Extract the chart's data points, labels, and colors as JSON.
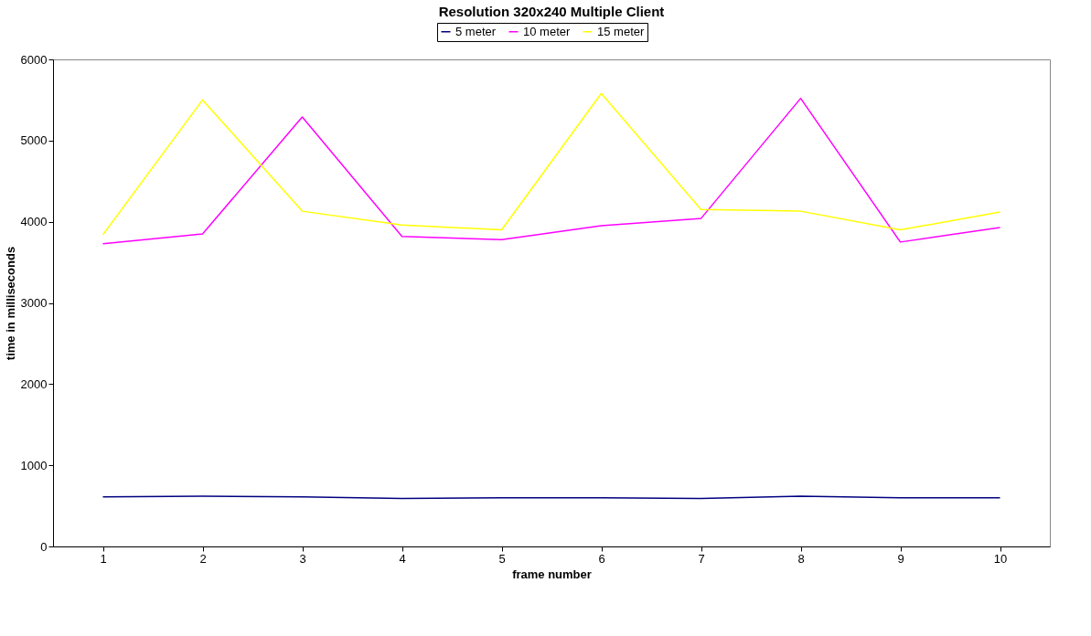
{
  "chart_data": {
    "type": "line",
    "title": "Resolution 320x240 Multiple Client",
    "xlabel": "frame number",
    "ylabel": "time in milliseconds",
    "categories": [
      "1",
      "2",
      "3",
      "4",
      "5",
      "6",
      "7",
      "8",
      "9",
      "10"
    ],
    "series": [
      {
        "name": "5 meter",
        "color": "#000080",
        "values": [
          610,
          620,
          610,
          590,
          600,
          600,
          590,
          620,
          600,
          600
        ]
      },
      {
        "name": "10 meter",
        "color": "#ff00ff",
        "values": [
          3730,
          3850,
          5290,
          3820,
          3780,
          3950,
          4040,
          5520,
          3750,
          3930
        ]
      },
      {
        "name": "15 meter",
        "color": "#ffff00",
        "values": [
          3840,
          5500,
          4130,
          3960,
          3900,
          5580,
          4150,
          4130,
          3900,
          4120
        ]
      }
    ],
    "ylim": [
      0,
      6000
    ],
    "yticks": [
      0,
      1000,
      2000,
      3000,
      4000,
      5000,
      6000
    ],
    "grid": false,
    "legend": "top",
    "marker": "none",
    "line_style": "solid"
  }
}
